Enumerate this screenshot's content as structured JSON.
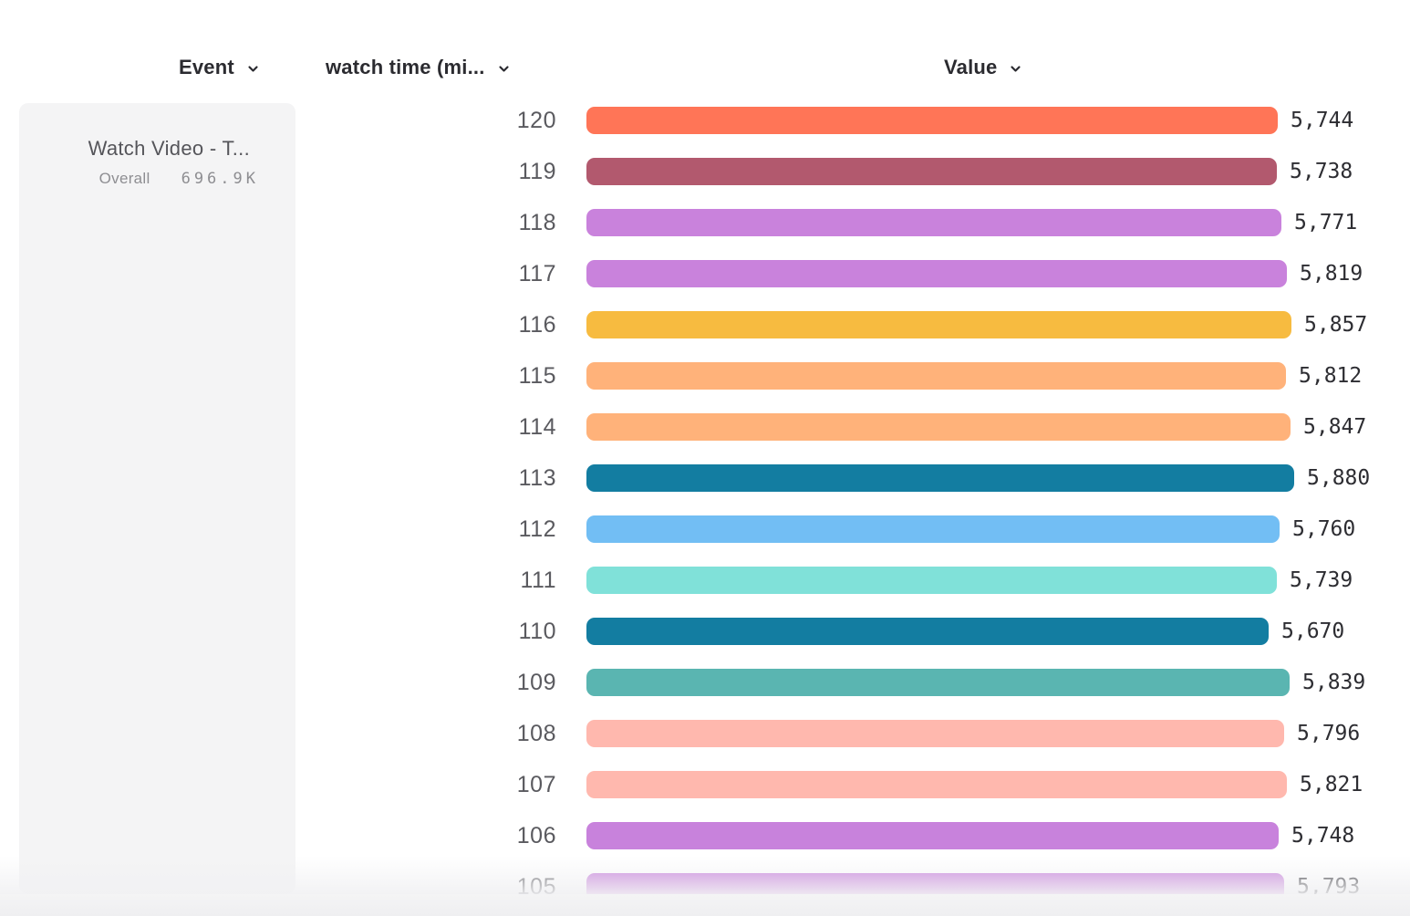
{
  "header": {
    "event_label": "Event",
    "breakdown_label": "watch time (mi...",
    "value_label": "Value"
  },
  "event_panel": {
    "name": "Watch Video - T...",
    "segment_label": "Overall",
    "segment_value": "696.9K"
  },
  "chart_data": {
    "type": "bar",
    "orientation": "horizontal",
    "series_label": "watch time (mi...",
    "event_name": "Watch Video - T...",
    "overall_total": "696.9K",
    "categories": [
      "120",
      "119",
      "118",
      "117",
      "116",
      "115",
      "114",
      "113",
      "112",
      "111",
      "110",
      "109",
      "108",
      "107",
      "106",
      "105"
    ],
    "values": [
      5744,
      5738,
      5771,
      5819,
      5857,
      5812,
      5847,
      5880,
      5760,
      5739,
      5670,
      5839,
      5796,
      5821,
      5748,
      5793
    ],
    "value_labels": [
      "5,744",
      "5,738",
      "5,771",
      "5,819",
      "5,857",
      "5,812",
      "5,847",
      "5,880",
      "5,760",
      "5,739",
      "5,670",
      "5,839",
      "5,796",
      "5,821",
      "5,748",
      "5,793"
    ],
    "bar_colors": [
      "#FF7557",
      "#B2596E",
      "#C982DC",
      "#C982DC",
      "#F7BB40",
      "#FFB27A",
      "#FFB27A",
      "#137DA1",
      "#72BEF4",
      "#80E1D9",
      "#137DA1",
      "#5AB5B1",
      "#FFB8AE",
      "#FFB8AE",
      "#C882DC",
      "#C882DC"
    ],
    "xlim": [
      0,
      5880
    ],
    "grid": false,
    "legend_position": "left"
  }
}
